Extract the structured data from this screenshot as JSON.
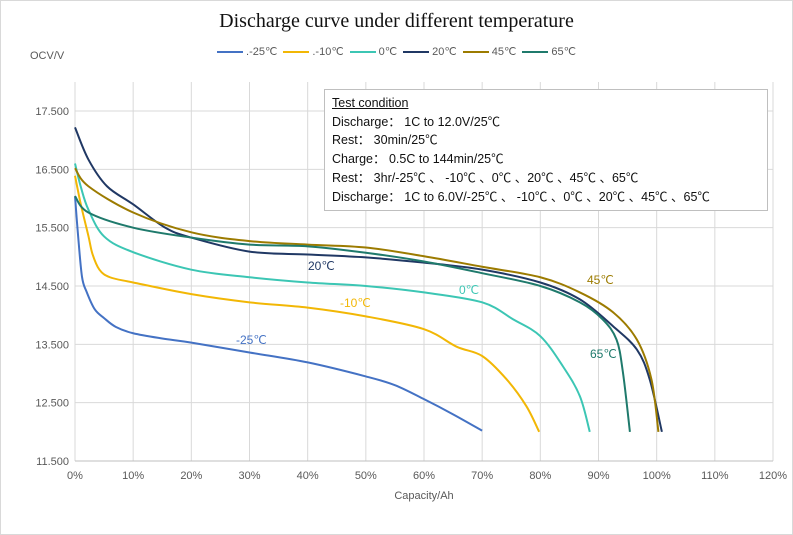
{
  "chart_data": {
    "type": "line",
    "title": "Discharge curve under different temperature",
    "xlabel": "Capacity/Ah",
    "ylabel": "OCV/V",
    "xlim": [
      0,
      120
    ],
    "ylim": [
      11.5,
      18.0
    ],
    "x_ticks": [
      "0%",
      "10%",
      "20%",
      "30%",
      "40%",
      "50%",
      "60%",
      "70%",
      "80%",
      "90%",
      "100%",
      "110%",
      "120%"
    ],
    "y_ticks": [
      "11.500",
      "12.500",
      "13.500",
      "14.500",
      "15.500",
      "16.500",
      "17.500"
    ],
    "y_tick_values": [
      11.5,
      12.5,
      13.5,
      14.5,
      15.5,
      16.5,
      17.5
    ],
    "grid": true,
    "legend_position": "top",
    "series": [
      {
        "name": ".-25℃",
        "label": "-25℃",
        "color": "#4472c4",
        "points": [
          [
            0,
            16.04
          ],
          [
            0.5,
            15.4
          ],
          [
            1.2,
            14.66
          ],
          [
            2,
            14.4
          ],
          [
            3.4,
            14.1
          ],
          [
            5,
            13.95
          ],
          [
            7,
            13.8
          ],
          [
            10,
            13.69
          ],
          [
            15,
            13.6
          ],
          [
            20,
            13.53
          ],
          [
            30,
            13.36
          ],
          [
            40,
            13.19
          ],
          [
            50,
            12.95
          ],
          [
            55,
            12.8
          ],
          [
            60,
            12.56
          ],
          [
            65,
            12.3
          ],
          [
            70,
            12.02
          ]
        ]
      },
      {
        "name": ".-10℃",
        "label": "-10℃",
        "color": "#f2b705",
        "points": [
          [
            0,
            16.39
          ],
          [
            1,
            15.9
          ],
          [
            2.3,
            15.36
          ],
          [
            3,
            15.05
          ],
          [
            4.2,
            14.78
          ],
          [
            6,
            14.65
          ],
          [
            10,
            14.56
          ],
          [
            20,
            14.36
          ],
          [
            30,
            14.22
          ],
          [
            40,
            14.13
          ],
          [
            50,
            13.98
          ],
          [
            60,
            13.76
          ],
          [
            65.6,
            13.46
          ],
          [
            70,
            13.3
          ],
          [
            74.2,
            12.9
          ],
          [
            77.6,
            12.44
          ],
          [
            79.8,
            12.0
          ]
        ]
      },
      {
        "name": "0℃",
        "label": "0℃",
        "color": "#3cc6b4",
        "points": [
          [
            0,
            16.6
          ],
          [
            1,
            16.2
          ],
          [
            2.3,
            15.81
          ],
          [
            5,
            15.35
          ],
          [
            10,
            15.08
          ],
          [
            20,
            14.78
          ],
          [
            30,
            14.65
          ],
          [
            40,
            14.56
          ],
          [
            50,
            14.5
          ],
          [
            60,
            14.39
          ],
          [
            70,
            14.22
          ],
          [
            75.3,
            13.93
          ],
          [
            80,
            13.64
          ],
          [
            83.9,
            13.12
          ],
          [
            86.8,
            12.61
          ],
          [
            88.5,
            12.0
          ]
        ]
      },
      {
        "name": "20℃",
        "label": "20℃",
        "color": "#203864",
        "points": [
          [
            0,
            17.22
          ],
          [
            2.3,
            16.67
          ],
          [
            5.5,
            16.21
          ],
          [
            10,
            15.9
          ],
          [
            15.5,
            15.5
          ],
          [
            20,
            15.33
          ],
          [
            30,
            15.09
          ],
          [
            40,
            15.04
          ],
          [
            50,
            14.99
          ],
          [
            60,
            14.9
          ],
          [
            70,
            14.78
          ],
          [
            80,
            14.56
          ],
          [
            86.8,
            14.27
          ],
          [
            92.5,
            13.81
          ],
          [
            96.6,
            13.41
          ],
          [
            98.8,
            12.9
          ],
          [
            100.9,
            12.0
          ]
        ]
      },
      {
        "name": "45℃",
        "label": "45℃",
        "color": "#9c7b00",
        "points": [
          [
            0,
            16.52
          ],
          [
            2.3,
            16.21
          ],
          [
            10,
            15.76
          ],
          [
            20,
            15.42
          ],
          [
            30,
            15.27
          ],
          [
            40,
            15.21
          ],
          [
            50,
            15.16
          ],
          [
            60,
            15.01
          ],
          [
            70,
            14.83
          ],
          [
            80,
            14.65
          ],
          [
            86.8,
            14.39
          ],
          [
            92.5,
            14.05
          ],
          [
            96.6,
            13.58
          ],
          [
            99.1,
            12.9
          ],
          [
            100.3,
            12.0
          ]
        ]
      },
      {
        "name": "65℃",
        "label": "65℃",
        "color": "#1f7a6c",
        "points": [
          [
            0,
            16.04
          ],
          [
            2.3,
            15.76
          ],
          [
            10,
            15.5
          ],
          [
            20,
            15.33
          ],
          [
            30,
            15.21
          ],
          [
            40,
            15.18
          ],
          [
            50,
            15.07
          ],
          [
            60,
            14.92
          ],
          [
            70,
            14.72
          ],
          [
            80,
            14.5
          ],
          [
            86.8,
            14.22
          ],
          [
            90.7,
            13.93
          ],
          [
            93.1,
            13.58
          ],
          [
            94.2,
            13.02
          ],
          [
            95.4,
            12.0
          ]
        ]
      }
    ],
    "annotations": {
      "title": "Test condition",
      "lines": [
        "Discharge： 1C to 12.0V/25℃",
        "Rest： 30min/25℃",
        "Charge： 0.5C to 144min/25℃",
        "Rest： 3hr/-25℃ 、 -10℃ 、0℃ 、20℃ 、45℃ 、65℃",
        "Discharge： 1C to 6.0V/-25℃ 、 -10℃ 、0℃ 、20℃ 、45℃ 、65℃"
      ]
    }
  }
}
